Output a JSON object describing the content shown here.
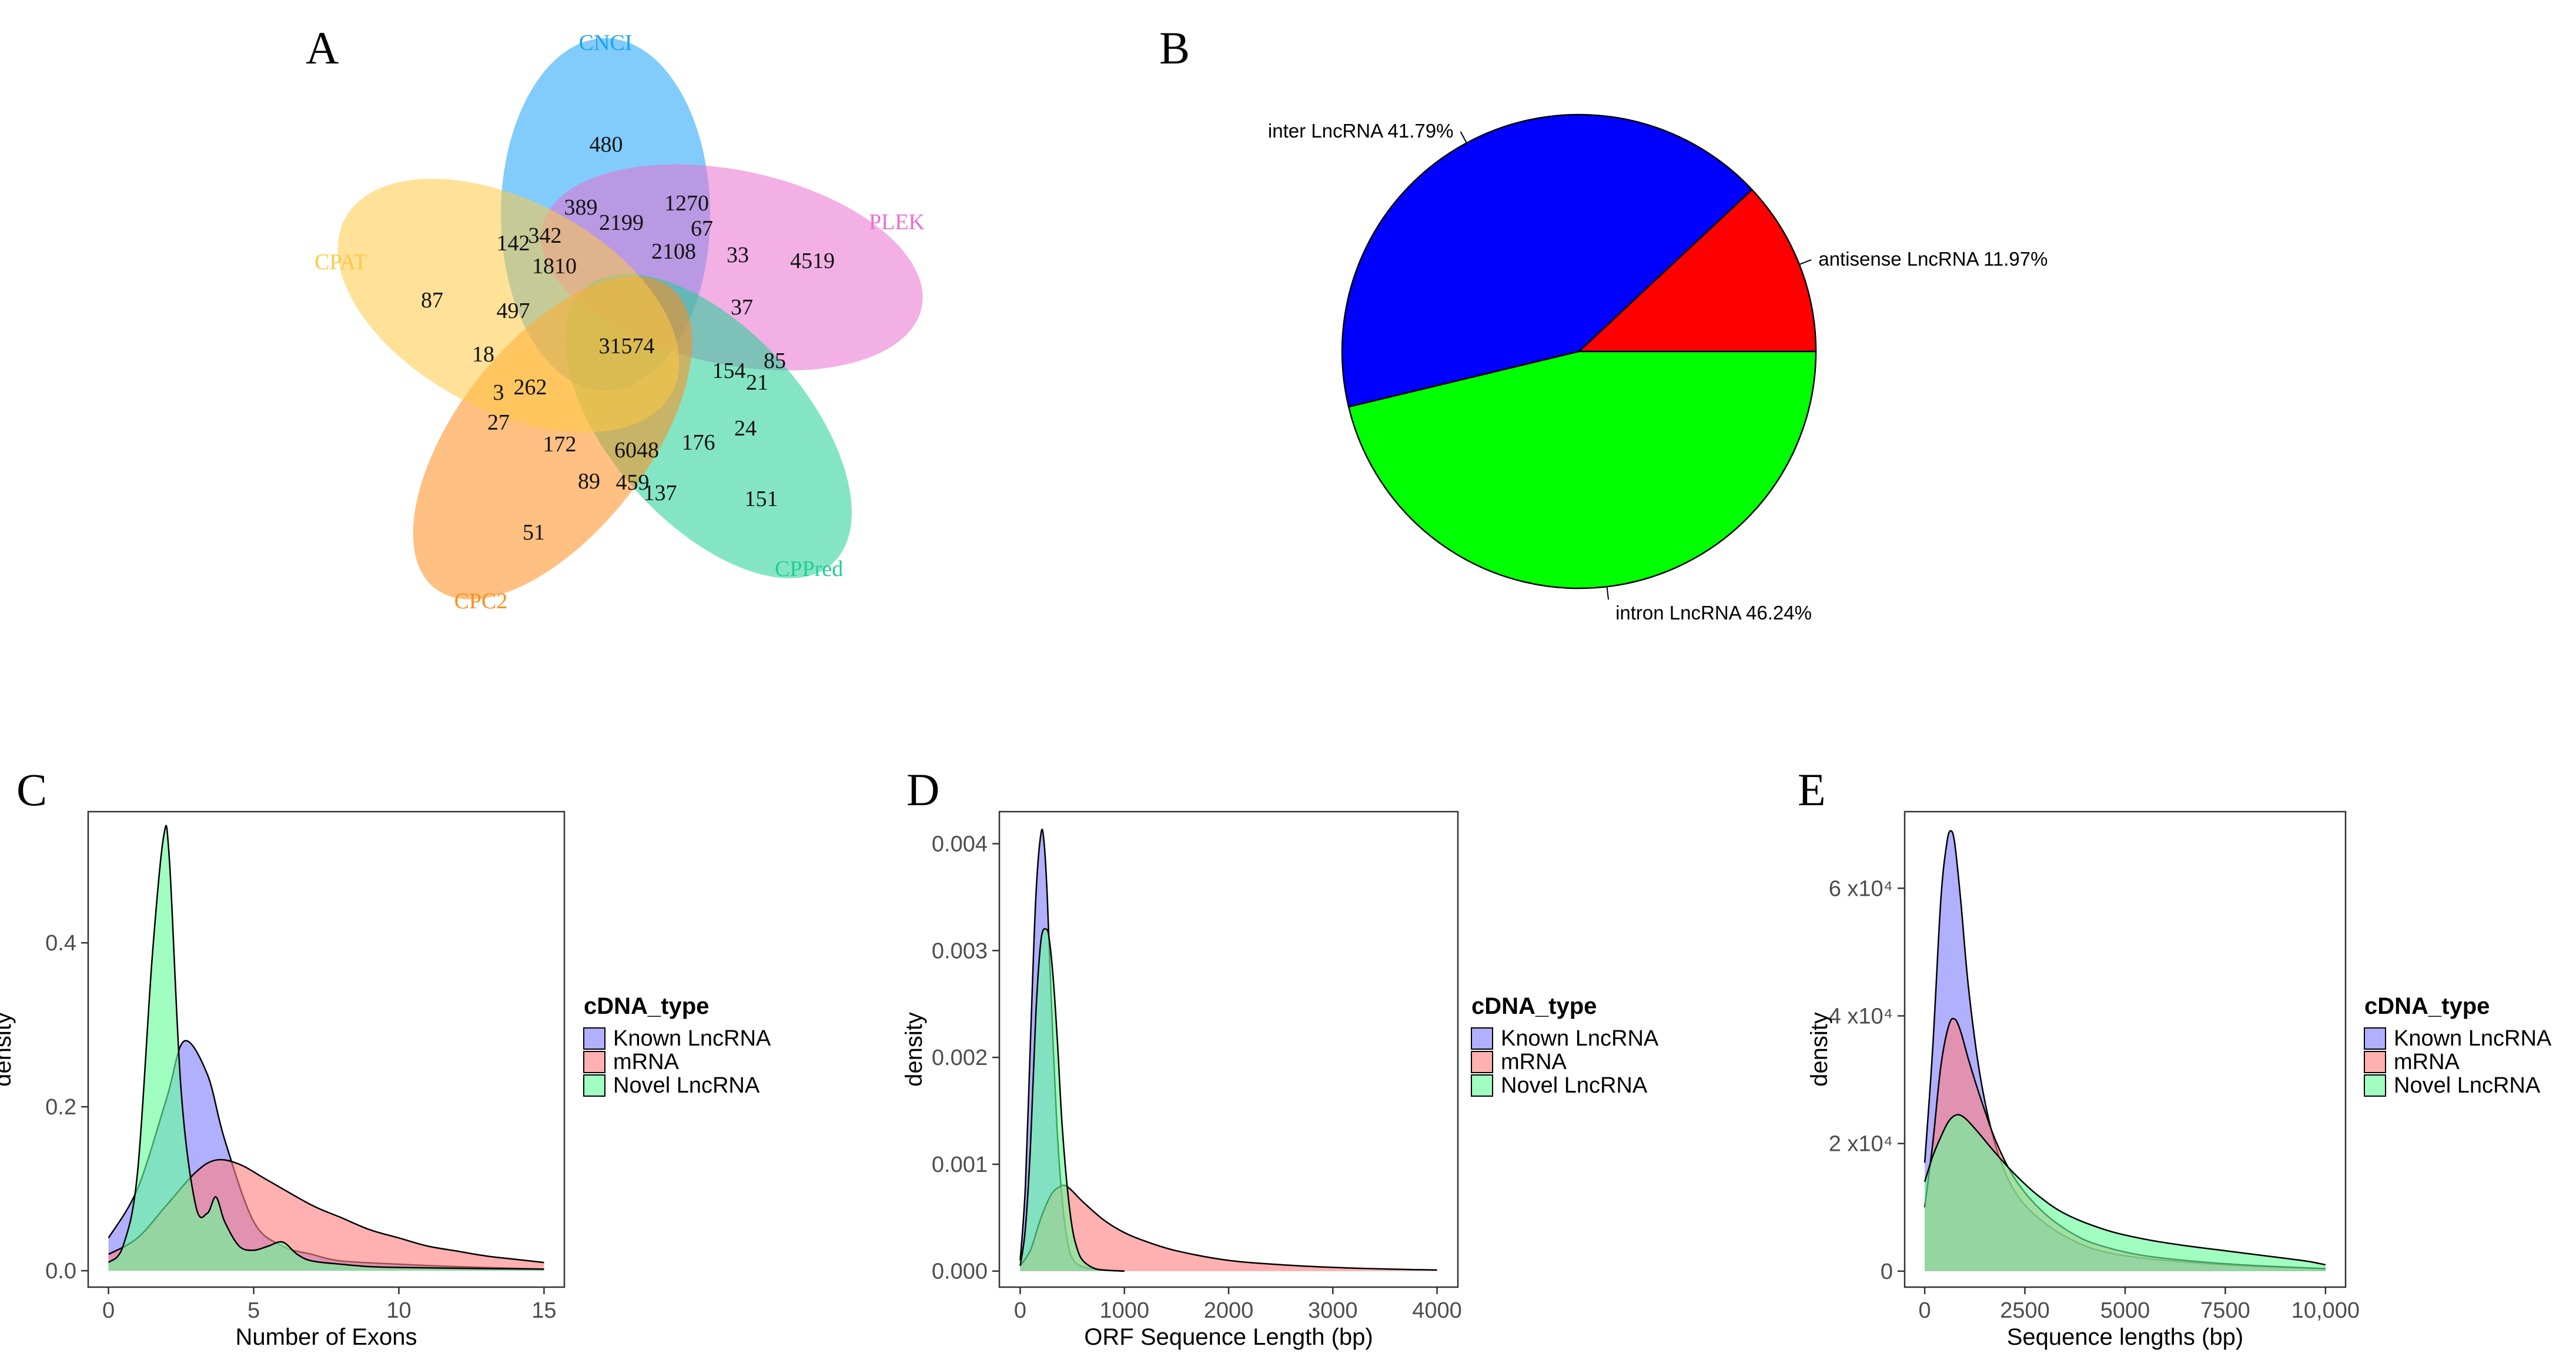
{
  "panel_letters": [
    "A",
    "B",
    "C",
    "D",
    "E"
  ],
  "venn": {
    "sets": [
      {
        "name": "CNCI",
        "color": "#1aa3f5"
      },
      {
        "name": "PLEK",
        "color": "#e86fd0"
      },
      {
        "name": "CPPred",
        "color": "#1fcf93"
      },
      {
        "name": "CPC2",
        "color": "#ff8c1a"
      },
      {
        "name": "CPAT",
        "color": "#ffc844"
      }
    ],
    "counts": [
      "480",
      "389",
      "2199",
      "1270",
      "67",
      "342",
      "142",
      "1810",
      "2108",
      "33",
      "4519",
      "87",
      "497",
      "37",
      "31574",
      "18",
      "154",
      "85",
      "21",
      "3",
      "262",
      "27",
      "24",
      "172",
      "6048",
      "176",
      "89",
      "459",
      "137",
      "151",
      "51"
    ]
  },
  "chart_data": [
    {
      "type": "pie",
      "slices": [
        {
          "label": "antisense LncRNA 11.97%",
          "value": 11.97,
          "color": "#ff0000"
        },
        {
          "label": "inter LncRNA 41.79%",
          "value": 41.79,
          "color": "#0000ff"
        },
        {
          "label": "intron LncRNA 46.24%",
          "value": 46.24,
          "color": "#00ff00"
        }
      ]
    },
    {
      "type": "area",
      "xlabel": "Number of Exons",
      "ylabel": "density",
      "xlim": [
        -0.7,
        15.7
      ],
      "ylim": [
        -0.02,
        0.56
      ],
      "xticks": [
        0,
        5,
        10,
        15
      ],
      "xtick_labels": [
        "0",
        "5",
        "10",
        "15"
      ],
      "yticks": [
        0,
        0.2,
        0.4
      ],
      "ytick_labels": [
        "0.0",
        "0.2",
        "0.4"
      ],
      "legend_title": "cDNA_type",
      "legend": [
        "Known LncRNA",
        "mRNA",
        "Novel LncRNA"
      ],
      "series": [
        {
          "name": "Known LncRNA",
          "color": "#8080ff",
          "x": [
            0,
            1,
            2,
            2.6,
            3.4,
            4,
            5,
            6,
            7,
            8,
            10,
            12,
            15
          ],
          "y": [
            0.04,
            0.1,
            0.21,
            0.28,
            0.24,
            0.16,
            0.06,
            0.03,
            0.02,
            0.012,
            0.008,
            0.005,
            0.002
          ]
        },
        {
          "name": "mRNA",
          "color": "#ff8080",
          "x": [
            0,
            1,
            2,
            3,
            3.7,
            4.5,
            5.5,
            7,
            8,
            9,
            10,
            11,
            12,
            13,
            14,
            15
          ],
          "y": [
            0.02,
            0.04,
            0.08,
            0.12,
            0.135,
            0.13,
            0.11,
            0.08,
            0.065,
            0.05,
            0.04,
            0.03,
            0.024,
            0.018,
            0.014,
            0.01
          ]
        },
        {
          "name": "Novel LncRNA",
          "color": "#66ff99",
          "x": [
            0,
            0.5,
            1,
            1.5,
            1.9,
            2.1,
            2.5,
            3,
            3.4,
            3.7,
            4,
            4.5,
            5,
            5.5,
            6,
            6.5,
            7,
            8,
            9,
            10,
            12,
            15
          ],
          "y": [
            0.01,
            0.03,
            0.12,
            0.38,
            0.53,
            0.5,
            0.22,
            0.08,
            0.07,
            0.09,
            0.06,
            0.03,
            0.025,
            0.03,
            0.035,
            0.02,
            0.012,
            0.008,
            0.005,
            0.004,
            0.003,
            0.002
          ]
        }
      ]
    },
    {
      "type": "area",
      "xlabel": "ORF Sequence Length (bp)",
      "ylabel": "density",
      "xlim": [
        -200,
        4200
      ],
      "ylim": [
        -0.00015,
        0.0043
      ],
      "xticks": [
        0,
        1000,
        2000,
        3000,
        4000
      ],
      "xtick_labels": [
        "0",
        "1000",
        "2000",
        "3000",
        "4000"
      ],
      "yticks": [
        0,
        0.001,
        0.002,
        0.003,
        0.004
      ],
      "ytick_labels": [
        "0.000",
        "0.001",
        "0.002",
        "0.003",
        "0.004"
      ],
      "legend_title": "cDNA_type",
      "legend": [
        "Known LncRNA",
        "mRNA",
        "Novel LncRNA"
      ],
      "series": [
        {
          "name": "Known LncRNA",
          "color": "#8080ff",
          "x": [
            0,
            50,
            100,
            150,
            200,
            230,
            260,
            300,
            350,
            400,
            450,
            500,
            600,
            800,
            1000
          ],
          "y": [
            0.0001,
            0.0008,
            0.0022,
            0.0035,
            0.0041,
            0.004,
            0.0035,
            0.0025,
            0.0014,
            0.0007,
            0.0003,
            0.00012,
            4e-05,
            1e-05,
            0
          ]
        },
        {
          "name": "mRNA",
          "color": "#ff8080",
          "x": [
            0,
            100,
            200,
            300,
            400,
            450,
            500,
            600,
            800,
            1000,
            1200,
            1500,
            2000,
            2500,
            3000,
            3500,
            4000
          ],
          "y": [
            5e-05,
            0.0002,
            0.0005,
            0.00072,
            0.0008,
            0.00079,
            0.00075,
            0.00065,
            0.00048,
            0.00036,
            0.00028,
            0.00019,
            0.0001,
            6e-05,
            3.5e-05,
            2e-05,
            1e-05
          ]
        },
        {
          "name": "Novel LncRNA",
          "color": "#66ff99",
          "x": [
            0,
            50,
            100,
            150,
            200,
            250,
            280,
            320,
            360,
            400,
            450,
            500,
            550,
            600,
            700,
            800,
            1000
          ],
          "y": [
            5e-05,
            0.0004,
            0.0012,
            0.0024,
            0.0031,
            0.0032,
            0.0031,
            0.0027,
            0.0021,
            0.0014,
            0.0008,
            0.0004,
            0.0002,
            0.0001,
            3e-05,
            1e-05,
            0
          ]
        }
      ]
    },
    {
      "type": "area",
      "xlabel": "Sequence lengths (bp)",
      "ylabel": "density",
      "xlim": [
        -500,
        10500
      ],
      "ylim": [
        -2500,
        72000
      ],
      "xticks": [
        0,
        2500,
        5000,
        7500,
        10000
      ],
      "xtick_labels": [
        "0",
        "2500",
        "5000",
        "7500",
        "10,000"
      ],
      "yticks": [
        0,
        20000,
        40000,
        60000
      ],
      "ytick_labels": [
        "0",
        "2 x10⁴",
        "4 x10⁴",
        "6 x10⁴"
      ],
      "legend_title": "cDNA_type",
      "legend": [
        "Known LncRNA",
        "mRNA",
        "Novel LncRNA"
      ],
      "series": [
        {
          "name": "Known LncRNA",
          "color": "#8080ff",
          "x": [
            0,
            200,
            400,
            550,
            650,
            750,
            900,
            1100,
            1400,
            1800,
            2300,
            3000,
            3800,
            4500,
            5500,
            7000,
            8500,
            10000
          ],
          "y": [
            17000,
            35000,
            58000,
            67000,
            69000,
            67000,
            58000,
            44000,
            30000,
            19000,
            12000,
            7500,
            4500,
            3000,
            2000,
            1200,
            700,
            400
          ]
        },
        {
          "name": "mRNA",
          "color": "#ff8080",
          "x": [
            0,
            200,
            400,
            600,
            750,
            900,
            1100,
            1400,
            1800,
            2300,
            3000,
            3800,
            4500,
            5500,
            7000,
            8500,
            10000
          ],
          "y": [
            10000,
            20000,
            32000,
            38500,
            39500,
            37500,
            33000,
            27000,
            20000,
            14000,
            9000,
            5500,
            3800,
            2400,
            1400,
            800,
            400
          ]
        },
        {
          "name": "Novel LncRNA",
          "color": "#66ff99",
          "x": [
            0,
            200,
            400,
            600,
            800,
            1000,
            1300,
            1700,
            2200,
            2800,
            3500,
            4500,
            5500,
            6500,
            7500,
            8500,
            9500,
            10000
          ],
          "y": [
            14000,
            18000,
            21000,
            23500,
            24500,
            24000,
            22000,
            19000,
            15500,
            12000,
            9000,
            6500,
            5000,
            4000,
            3200,
            2400,
            1600,
            1000
          ]
        }
      ]
    }
  ]
}
